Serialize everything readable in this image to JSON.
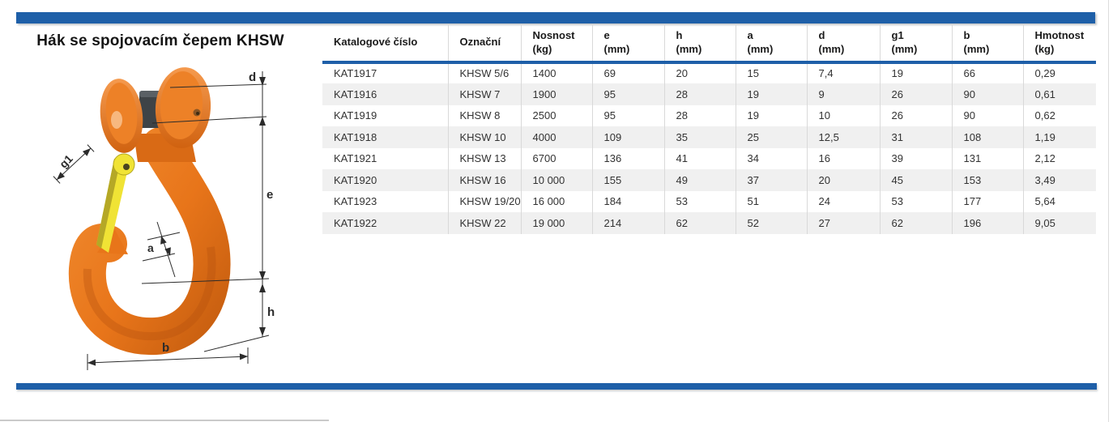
{
  "page": {
    "title": "Hák se spojovacím čepem KHSW"
  },
  "colors": {
    "accent_blue": "#1e5fa8",
    "row_alt_gray": "#f0f0f0",
    "hook_orange": "#e8751a",
    "hook_orange_dark": "#c25a0e",
    "latch_yellow": "#f0e335",
    "pin_dark": "#3e4347",
    "dim_line": "#2b2b2b"
  },
  "diagram": {
    "labels": {
      "d": "d",
      "g1": "g1",
      "e": "e",
      "a": "a",
      "h": "h",
      "b": "b"
    }
  },
  "table": {
    "columns": [
      {
        "label": "Katalogové číslo",
        "unit": ""
      },
      {
        "label": "Označní",
        "unit": ""
      },
      {
        "label": "Nosnost",
        "unit": "(kg)"
      },
      {
        "label": "e",
        "unit": "(mm)"
      },
      {
        "label": "h",
        "unit": "(mm)"
      },
      {
        "label": "a",
        "unit": "(mm)"
      },
      {
        "label": "d",
        "unit": "(mm)"
      },
      {
        "label": "g1",
        "unit": "(mm)"
      },
      {
        "label": "b",
        "unit": "(mm)"
      },
      {
        "label": "Hmotnost",
        "unit": "(kg)"
      }
    ],
    "rows": [
      [
        "KAT1917",
        "KHSW 5/6",
        "1400",
        "69",
        "20",
        "15",
        "7,4",
        "19",
        "66",
        "0,29"
      ],
      [
        "KAT1916",
        "KHSW 7",
        "1900",
        "95",
        "28",
        "19",
        "9",
        "26",
        "90",
        "0,61"
      ],
      [
        "KAT1919",
        "KHSW 8",
        "2500",
        "95",
        "28",
        "19",
        "10",
        "26",
        "90",
        "0,62"
      ],
      [
        "KAT1918",
        "KHSW 10",
        "4000",
        "109",
        "35",
        "25",
        "12,5",
        "31",
        "108",
        "1,19"
      ],
      [
        "KAT1921",
        "KHSW 13",
        "6700",
        "136",
        "41",
        "34",
        "16",
        "39",
        "131",
        "2,12"
      ],
      [
        "KAT1920",
        "KHSW 16",
        "10 000",
        "155",
        "49",
        "37",
        "20",
        "45",
        "153",
        "3,49"
      ],
      [
        "KAT1923",
        "KHSW 19/20",
        "16 000",
        "184",
        "53",
        "51",
        "24",
        "53",
        "177",
        "5,64"
      ],
      [
        "KAT1922",
        "KHSW 22",
        "19 000",
        "214",
        "62",
        "52",
        "27",
        "62",
        "196",
        "9,05"
      ]
    ]
  }
}
